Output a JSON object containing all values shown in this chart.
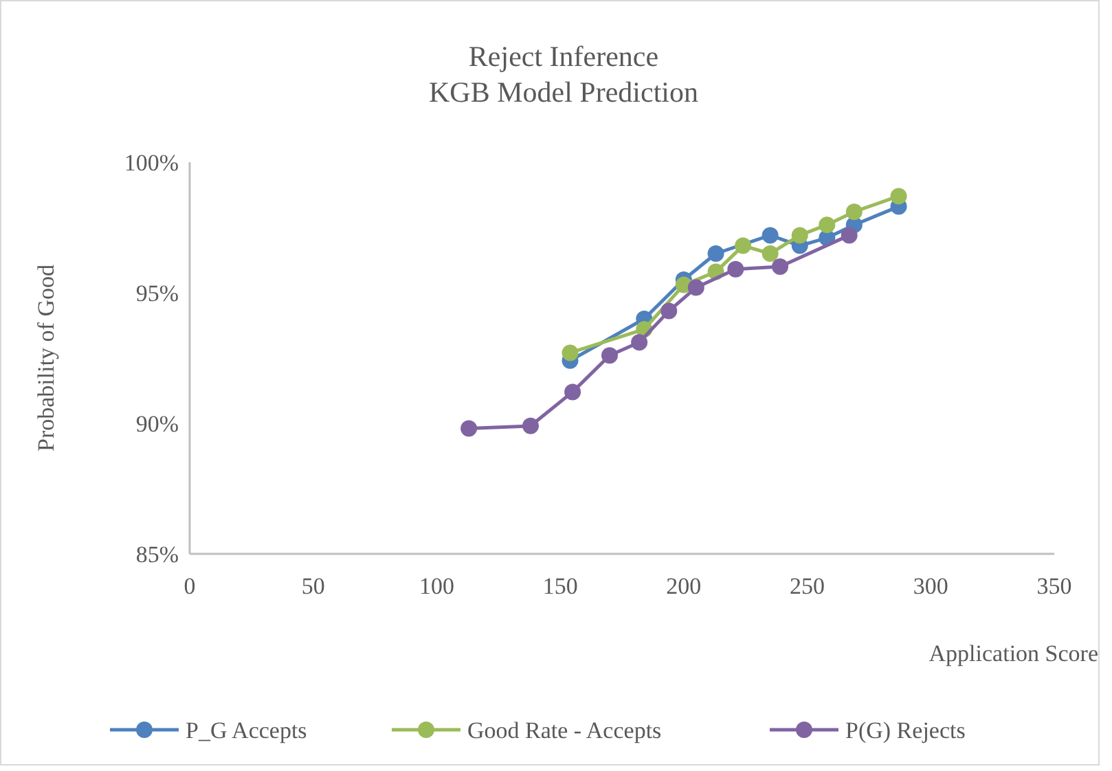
{
  "chart_data": {
    "type": "line",
    "title": "Reject Inference\nKGB Model Prediction",
    "xlabel": "Application Score",
    "ylabel": "Probability of Good",
    "xlim": [
      0,
      350
    ],
    "xticks": [
      0,
      50,
      100,
      150,
      200,
      250,
      300,
      350
    ],
    "ylim": [
      85,
      100
    ],
    "yticks": [
      {
        "value": 85,
        "label": "85%"
      },
      {
        "value": 90,
        "label": "90%"
      },
      {
        "value": 95,
        "label": "95%"
      },
      {
        "value": 100,
        "label": "100%"
      }
    ],
    "grid": false,
    "legend": "bottom",
    "marker": "circle",
    "line_style": "solid",
    "series": [
      {
        "name": "P_G Accepts",
        "color": "#4e81bd",
        "x": [
          154,
          184,
          200,
          213,
          235,
          247,
          258,
          269,
          287
        ],
        "values": [
          92.4,
          94.0,
          95.5,
          96.5,
          97.2,
          96.8,
          97.1,
          97.6,
          98.3
        ]
      },
      {
        "name": "Good Rate - Accepts",
        "color": "#9bbb59",
        "x": [
          154,
          184,
          200,
          213,
          224,
          235,
          247,
          258,
          269,
          287
        ],
        "values": [
          92.7,
          93.6,
          95.3,
          95.8,
          96.8,
          96.5,
          97.2,
          97.6,
          98.1,
          98.7
        ]
      },
      {
        "name": "P(G) Rejects",
        "color": "#8064a2",
        "x": [
          113,
          138,
          155,
          170,
          182,
          194,
          205,
          221,
          239,
          267
        ],
        "values": [
          89.8,
          89.9,
          91.2,
          92.6,
          93.1,
          94.3,
          95.2,
          95.9,
          96.0,
          97.2
        ]
      }
    ]
  }
}
